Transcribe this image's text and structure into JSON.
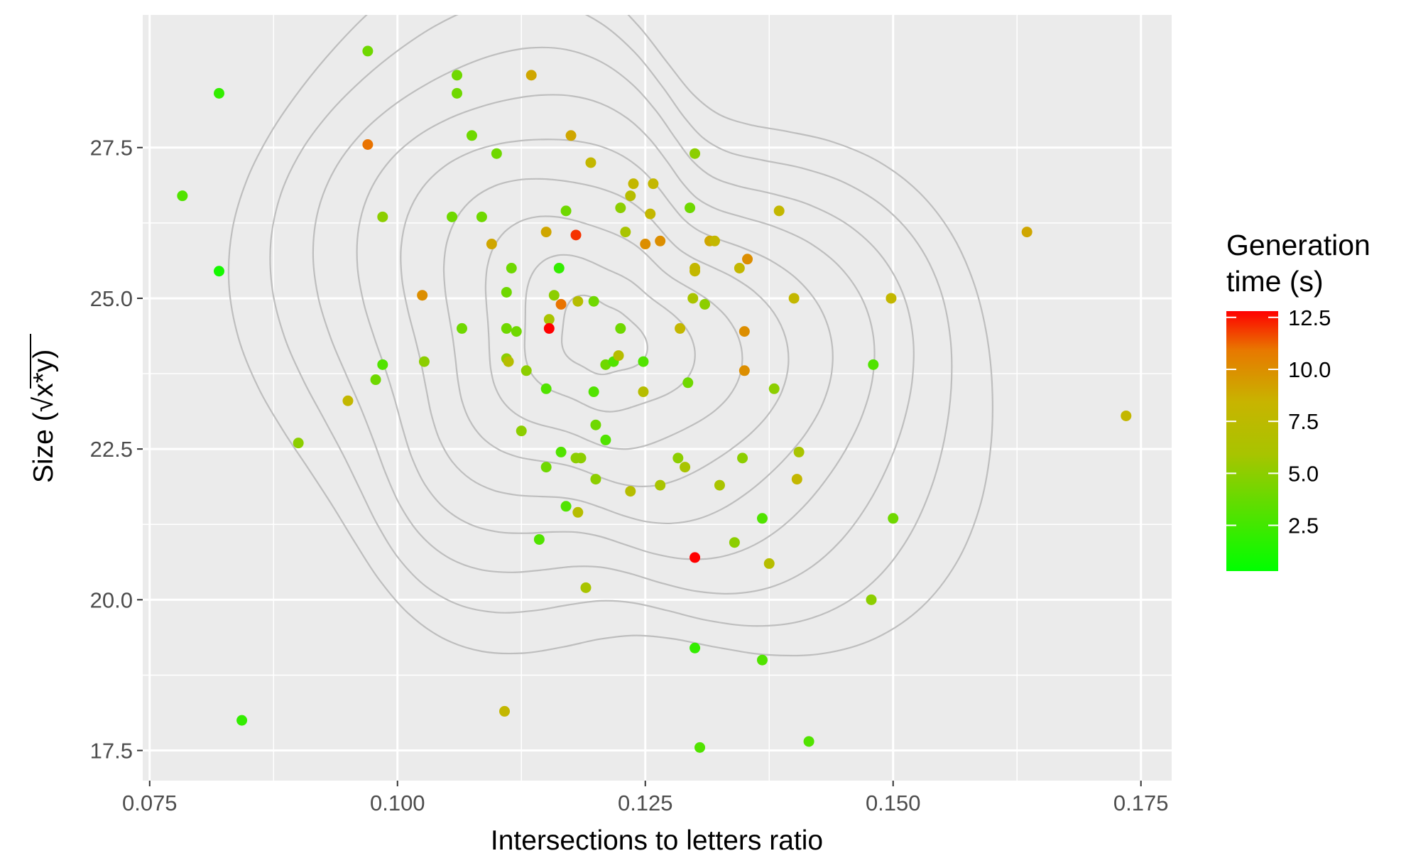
{
  "chart_data": {
    "type": "scatter",
    "xlabel": "Intersections to letters ratio",
    "ylabel_prefix": "Size (",
    "ylabel_radical": "√",
    "ylabel_radicand": "x*y",
    "ylabel_suffix": ")",
    "xlim": [
      0.0743,
      0.1781
    ],
    "ylim": [
      17.0,
      29.7
    ],
    "x_ticks": [
      0.075,
      0.1,
      0.125,
      0.15,
      0.175
    ],
    "x_tick_labels": [
      "0.075",
      "0.100",
      "0.125",
      "0.150",
      "0.175"
    ],
    "y_ticks": [
      17.5,
      20.0,
      22.5,
      25.0,
      27.5
    ],
    "y_tick_labels": [
      "17.5",
      "20.0",
      "22.5",
      "25.0",
      "27.5"
    ],
    "grid": true,
    "legend": {
      "title_line1": "Generation",
      "title_line2": "time (s)",
      "position": "right",
      "ticks": [
        2.5,
        5.0,
        7.5,
        10.0,
        12.5
      ],
      "tick_labels": [
        "2.5",
        "5.0",
        "7.5",
        "10.0",
        "12.5"
      ],
      "range": [
        0.3,
        12.8
      ]
    },
    "colors": {
      "low": "#00ff00",
      "mid": "#c8b400",
      "high": "#ff0000",
      "contour": "#bebebe",
      "panel": "#ebebeb",
      "grid": "#ffffff"
    },
    "contour_center": [
      0.1205,
      24.35
    ],
    "contour_levels": 9,
    "series": [
      {
        "points": [
          [
            0.097,
            29.1,
            4
          ],
          [
            0.082,
            28.4,
            2
          ],
          [
            0.106,
            28.7,
            4
          ],
          [
            0.106,
            28.4,
            4
          ],
          [
            0.1135,
            28.7,
            9
          ],
          [
            0.097,
            27.55,
            11
          ],
          [
            0.1075,
            27.7,
            4
          ],
          [
            0.11,
            27.4,
            4
          ],
          [
            0.1175,
            27.7,
            9
          ],
          [
            0.1195,
            27.25,
            8
          ],
          [
            0.13,
            27.4,
            5
          ],
          [
            0.0783,
            26.7,
            3
          ],
          [
            0.0985,
            26.35,
            5
          ],
          [
            0.1055,
            26.35,
            4
          ],
          [
            0.1085,
            26.35,
            4
          ],
          [
            0.1095,
            25.9,
            9
          ],
          [
            0.117,
            26.45,
            4
          ],
          [
            0.115,
            26.1,
            9
          ],
          [
            0.118,
            26.05,
            12
          ],
          [
            0.1225,
            26.5,
            5
          ],
          [
            0.1235,
            26.7,
            7
          ],
          [
            0.1238,
            26.9,
            8
          ],
          [
            0.1258,
            26.9,
            8
          ],
          [
            0.1255,
            26.4,
            8
          ],
          [
            0.125,
            25.9,
            10
          ],
          [
            0.1265,
            25.95,
            10
          ],
          [
            0.123,
            26.1,
            6
          ],
          [
            0.1295,
            26.5,
            4
          ],
          [
            0.1315,
            25.95,
            9
          ],
          [
            0.132,
            25.95,
            8
          ],
          [
            0.1385,
            26.45,
            8
          ],
          [
            0.1635,
            26.1,
            9
          ],
          [
            0.082,
            25.45,
            1
          ],
          [
            0.1025,
            25.05,
            10
          ],
          [
            0.111,
            25.1,
            4
          ],
          [
            0.1115,
            25.5,
            4
          ],
          [
            0.1163,
            25.5,
            2
          ],
          [
            0.1158,
            25.05,
            5
          ],
          [
            0.1182,
            24.95,
            7
          ],
          [
            0.1198,
            24.95,
            4
          ],
          [
            0.1165,
            24.9,
            11
          ],
          [
            0.1153,
            24.65,
            6
          ],
          [
            0.1153,
            24.5,
            13
          ],
          [
            0.1065,
            24.5,
            4
          ],
          [
            0.111,
            24.5,
            4
          ],
          [
            0.112,
            24.45,
            4
          ],
          [
            0.13,
            25.5,
            8
          ],
          [
            0.13,
            25.45,
            8
          ],
          [
            0.1298,
            25.0,
            6
          ],
          [
            0.131,
            24.9,
            5
          ],
          [
            0.1345,
            25.5,
            8
          ],
          [
            0.1353,
            25.65,
            10
          ],
          [
            0.14,
            25.0,
            8
          ],
          [
            0.1498,
            25.0,
            8
          ],
          [
            0.1225,
            24.5,
            4
          ],
          [
            0.1285,
            24.5,
            8
          ],
          [
            0.135,
            24.45,
            10
          ],
          [
            0.0985,
            23.9,
            3
          ],
          [
            0.0978,
            23.65,
            4
          ],
          [
            0.1027,
            23.95,
            5
          ],
          [
            0.111,
            24.0,
            5
          ],
          [
            0.1112,
            23.95,
            7
          ],
          [
            0.113,
            23.8,
            5
          ],
          [
            0.115,
            23.5,
            3
          ],
          [
            0.121,
            23.9,
            4
          ],
          [
            0.1218,
            23.95,
            3
          ],
          [
            0.1223,
            24.05,
            7
          ],
          [
            0.1248,
            23.95,
            3
          ],
          [
            0.1248,
            23.45,
            7
          ],
          [
            0.1198,
            23.45,
            3
          ],
          [
            0.1293,
            23.6,
            4
          ],
          [
            0.135,
            23.8,
            10
          ],
          [
            0.138,
            23.5,
            5
          ],
          [
            0.148,
            23.9,
            3
          ],
          [
            0.1735,
            23.05,
            8
          ],
          [
            0.095,
            23.3,
            8
          ],
          [
            0.09,
            22.6,
            5
          ],
          [
            0.1125,
            22.8,
            5
          ],
          [
            0.115,
            22.2,
            4
          ],
          [
            0.1165,
            22.45,
            3
          ],
          [
            0.118,
            22.35,
            5
          ],
          [
            0.1185,
            22.35,
            5
          ],
          [
            0.12,
            22.9,
            4
          ],
          [
            0.121,
            22.65,
            3
          ],
          [
            0.12,
            22.0,
            5
          ],
          [
            0.1235,
            21.8,
            7
          ],
          [
            0.1265,
            21.9,
            6
          ],
          [
            0.1283,
            22.35,
            5
          ],
          [
            0.129,
            22.2,
            6
          ],
          [
            0.1325,
            21.9,
            6
          ],
          [
            0.1348,
            22.35,
            5
          ],
          [
            0.1405,
            22.45,
            6
          ],
          [
            0.1403,
            22.0,
            8
          ],
          [
            0.117,
            21.55,
            3
          ],
          [
            0.1182,
            21.45,
            7
          ],
          [
            0.1143,
            21.0,
            3
          ],
          [
            0.1368,
            21.35,
            3
          ],
          [
            0.134,
            20.95,
            5
          ],
          [
            0.1375,
            20.6,
            7
          ],
          [
            0.15,
            21.35,
            4
          ],
          [
            0.119,
            20.2,
            6
          ],
          [
            0.13,
            20.7,
            13
          ],
          [
            0.1478,
            20.0,
            5
          ],
          [
            0.13,
            19.2,
            2
          ],
          [
            0.1368,
            19.0,
            3
          ],
          [
            0.1108,
            18.15,
            8
          ],
          [
            0.0843,
            18.0,
            2
          ],
          [
            0.1305,
            17.55,
            3
          ],
          [
            0.1415,
            17.65,
            3
          ]
        ]
      }
    ]
  }
}
